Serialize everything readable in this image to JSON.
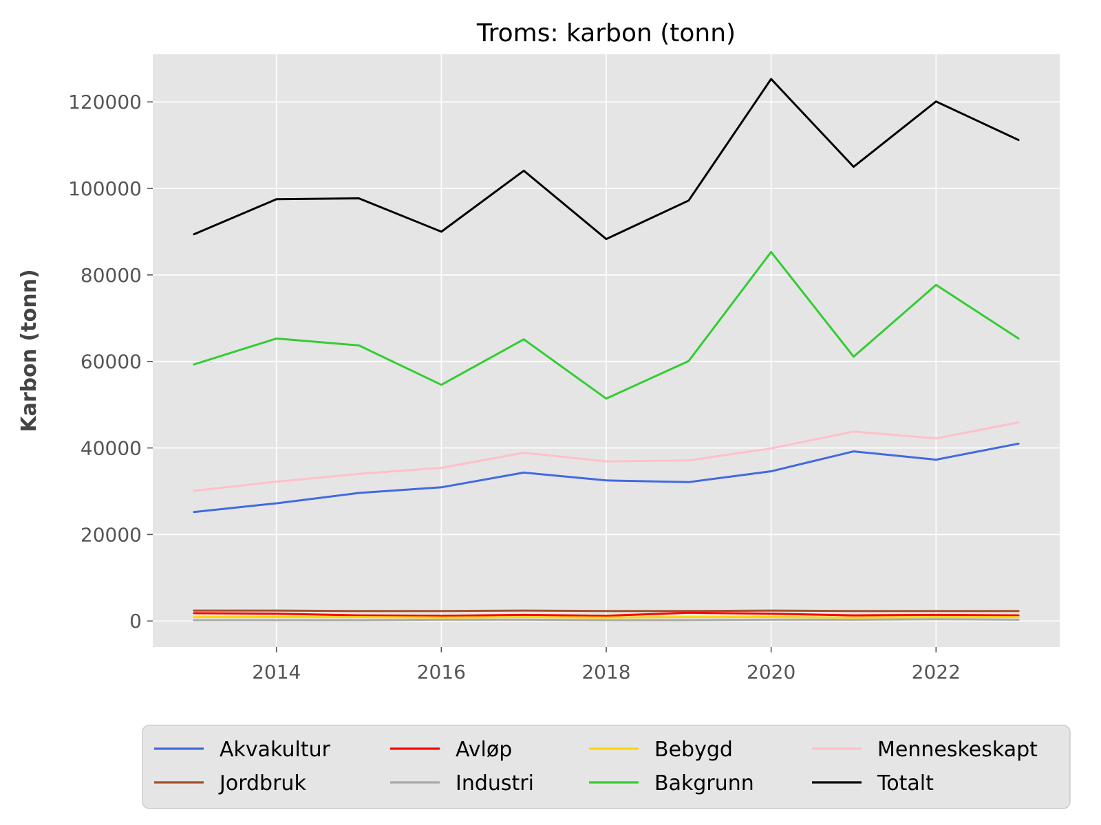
{
  "chart_data": {
    "type": "line",
    "title": "Troms: karbon (tonn)",
    "xlabel": "",
    "ylabel": "Karbon (tonn)",
    "x": [
      2013,
      2014,
      2015,
      2016,
      2017,
      2018,
      2019,
      2020,
      2021,
      2022,
      2023
    ],
    "xlim": [
      2012.5,
      2023.5
    ],
    "ylim": [
      -6000,
      131000
    ],
    "xticks": [
      2014,
      2016,
      2018,
      2020,
      2022
    ],
    "yticks": [
      0,
      20000,
      40000,
      60000,
      80000,
      100000,
      120000
    ],
    "grid": true,
    "background": "#e5e5e5",
    "legend_position": "bottom-center",
    "legend_columns": 4,
    "series": [
      {
        "name": "Akvakultur",
        "color": "#4169e1",
        "values": [
          25200,
          27200,
          29600,
          30900,
          34300,
          32500,
          32100,
          34600,
          39200,
          37300,
          41000
        ]
      },
      {
        "name": "Avløp",
        "color": "#ff0000",
        "values": [
          1800,
          1700,
          1300,
          1200,
          1400,
          1200,
          1900,
          1700,
          1300,
          1400,
          1300
        ]
      },
      {
        "name": "Bebygd",
        "color": "#ffd700",
        "values": [
          900,
          900,
          900,
          800,
          900,
          800,
          900,
          900,
          800,
          900,
          900
        ]
      },
      {
        "name": "Menneskeskapt",
        "color": "#ffc0cb",
        "values": [
          30100,
          32200,
          34000,
          35400,
          38900,
          36900,
          37100,
          39900,
          43800,
          42200,
          45900
        ]
      },
      {
        "name": "Jordbruk",
        "color": "#a0522d",
        "values": [
          2400,
          2400,
          2300,
          2300,
          2400,
          2300,
          2300,
          2400,
          2300,
          2300,
          2300
        ]
      },
      {
        "name": "Industri",
        "color": "#a9a9a9",
        "values": [
          200,
          200,
          200,
          300,
          300,
          200,
          200,
          300,
          300,
          400,
          300
        ]
      },
      {
        "name": "Bakgrunn",
        "color": "#32cd32",
        "values": [
          59300,
          65300,
          63700,
          54600,
          65100,
          51400,
          60100,
          85300,
          61100,
          77700,
          65300
        ]
      },
      {
        "name": "Totalt",
        "color": "#000000",
        "values": [
          89400,
          97500,
          97700,
          90000,
          104100,
          88300,
          97200,
          125300,
          105000,
          120100,
          111200
        ]
      }
    ],
    "legend_order": [
      "Akvakultur",
      "Avløp",
      "Bebygd",
      "Menneskeskapt",
      "Jordbruk",
      "Industri",
      "Bakgrunn",
      "Totalt"
    ],
    "draw_order": [
      "Akvakultur",
      "Jordbruk",
      "Avløp",
      "Industri",
      "Bebygd",
      "Bakgrunn",
      "Menneskeskapt",
      "Totalt"
    ]
  }
}
